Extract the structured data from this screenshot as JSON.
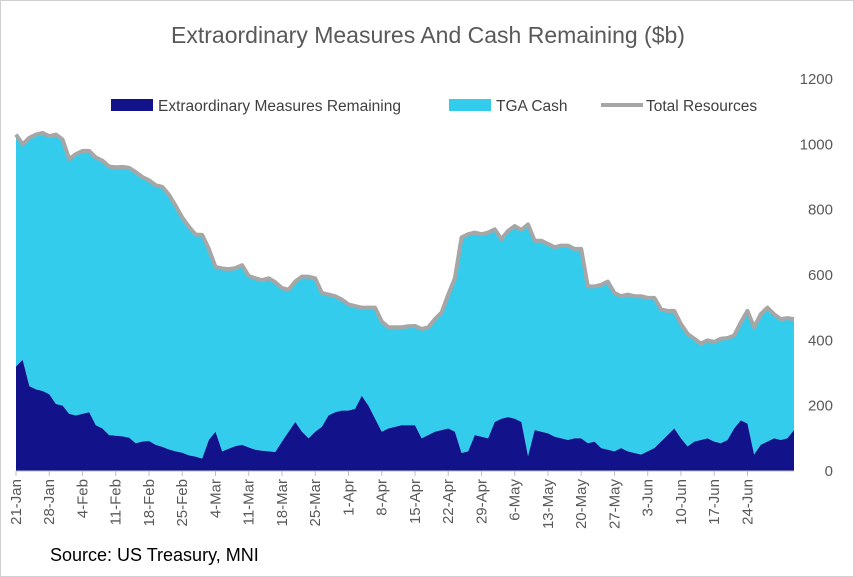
{
  "chart_data": {
    "type": "area",
    "title": "Extraordinary Measures And Cash Remaining ($b)",
    "source": "Source: US Treasury, MNI",
    "ylim": [
      0,
      1200
    ],
    "yticks": [
      0,
      200,
      400,
      600,
      800,
      1000,
      1200
    ],
    "y_axis_position": "right",
    "legend_position": "top",
    "xticks": [
      {
        "label": "21-Jan",
        "index": 0
      },
      {
        "label": "28-Jan",
        "index": 5
      },
      {
        "label": "4-Feb",
        "index": 10
      },
      {
        "label": "11-Feb",
        "index": 15
      },
      {
        "label": "18-Feb",
        "index": 20
      },
      {
        "label": "25-Feb",
        "index": 25
      },
      {
        "label": "4-Mar",
        "index": 30
      },
      {
        "label": "11-Mar",
        "index": 35
      },
      {
        "label": "18-Mar",
        "index": 40
      },
      {
        "label": "25-Mar",
        "index": 45
      },
      {
        "label": "1-Apr",
        "index": 50
      },
      {
        "label": "8-Apr",
        "index": 55
      },
      {
        "label": "15-Apr",
        "index": 60
      },
      {
        "label": "22-Apr",
        "index": 65
      },
      {
        "label": "29-Apr",
        "index": 70
      },
      {
        "label": "6-May",
        "index": 75
      },
      {
        "label": "13-May",
        "index": 80
      },
      {
        "label": "20-May",
        "index": 85
      },
      {
        "label": "27-May",
        "index": 90
      },
      {
        "label": "3-Jun",
        "index": 95
      },
      {
        "label": "10-Jun",
        "index": 100
      },
      {
        "label": "17-Jun",
        "index": 105
      },
      {
        "label": "24-Jun",
        "index": 110
      }
    ],
    "colors": {
      "extraordinary": "#12128a",
      "tga": "#33ccec",
      "total": "#a6a6a6"
    },
    "series": [
      {
        "name": "Extraordinary Measures Remaining",
        "values": [
          320,
          340,
          260,
          250,
          245,
          235,
          205,
          200,
          175,
          170,
          175,
          180,
          140,
          130,
          110,
          108,
          106,
          102,
          85,
          90,
          92,
          80,
          74,
          66,
          60,
          56,
          48,
          44,
          38,
          95,
          120,
          60,
          68,
          76,
          80,
          72,
          65,
          62,
          60,
          58,
          90,
          120,
          150,
          120,
          100,
          120,
          135,
          170,
          180,
          185,
          185,
          190,
          230,
          200,
          160,
          120,
          130,
          135,
          140,
          140,
          140,
          100,
          110,
          120,
          125,
          130,
          120,
          55,
          60,
          110,
          105,
          100,
          150,
          160,
          165,
          160,
          150,
          45,
          125,
          120,
          115,
          105,
          100,
          95,
          100,
          100,
          85,
          90,
          70,
          65,
          60,
          70,
          60,
          55,
          50,
          60,
          70,
          90,
          110,
          130,
          100,
          75,
          90,
          95,
          100,
          90,
          85,
          95,
          130,
          155,
          145,
          50,
          80,
          90,
          100,
          95,
          100,
          125
        ]
      },
      {
        "name": "TGA Cash",
        "values": [
          710,
          660,
          760,
          780,
          790,
          790,
          825,
          815,
          780,
          800,
          805,
          800,
          820,
          820,
          822,
          822,
          825,
          826,
          830,
          810,
          798,
          795,
          796,
          780,
          752,
          720,
          700,
          680,
          685,
          585,
          505,
          560,
          550,
          545,
          550,
          525,
          525,
          522,
          530,
          520,
          470,
          435,
          430,
          475,
          495,
          470,
          410,
          370,
          355,
          340,
          325,
          315,
          270,
          300,
          340,
          338,
          310,
          305,
          300,
          303,
          304,
          335,
          330,
          345,
          360,
          410,
          470,
          660,
          665,
          620,
          620,
          630,
          590,
          550,
          570,
          590,
          588,
          710,
          580,
          585,
          580,
          580,
          590,
          595,
          580,
          580,
          480,
          475,
          500,
          515,
          485,
          465,
          480,
          480,
          485,
          470,
          460,
          405,
          380,
          360,
          350,
          345,
          315,
          295,
          300,
          305,
          320,
          312,
          285,
          300,
          345,
          390,
          400,
          410,
          380,
          370,
          368,
          340
        ]
      },
      {
        "name": "Total Resources",
        "values": [
          1030,
          1000,
          1020,
          1030,
          1035,
          1025,
          1030,
          1015,
          955,
          970,
          980,
          980,
          960,
          950,
          932,
          930,
          931,
          928,
          915,
          900,
          890,
          875,
          870,
          846,
          812,
          776,
          748,
          724,
          723,
          680,
          625,
          620,
          618,
          621,
          630,
          597,
          590,
          584,
          590,
          578,
          560,
          555,
          580,
          595,
          595,
          590,
          545,
          540,
          535,
          525,
          510,
          505,
          500,
          500,
          500,
          458,
          440,
          440,
          440,
          443,
          444,
          435,
          440,
          465,
          485,
          540,
          590,
          715,
          725,
          730,
          725,
          730,
          740,
          710,
          735,
          750,
          738,
          755,
          705,
          705,
          695,
          685,
          690,
          690,
          680,
          680,
          565,
          565,
          570,
          580,
          545,
          535,
          540,
          535,
          535,
          530,
          530,
          495,
          490,
          490,
          450,
          420,
          405,
          390,
          400,
          395,
          405,
          407,
          415,
          455,
          490,
          440,
          480,
          500,
          480,
          465,
          468,
          465
        ]
      }
    ],
    "legend": [
      {
        "label": "Extraordinary Measures Remaining",
        "key": "extraordinary"
      },
      {
        "label": "TGA Cash",
        "key": "tga"
      },
      {
        "label": "Total Resources",
        "key": "total"
      }
    ]
  }
}
